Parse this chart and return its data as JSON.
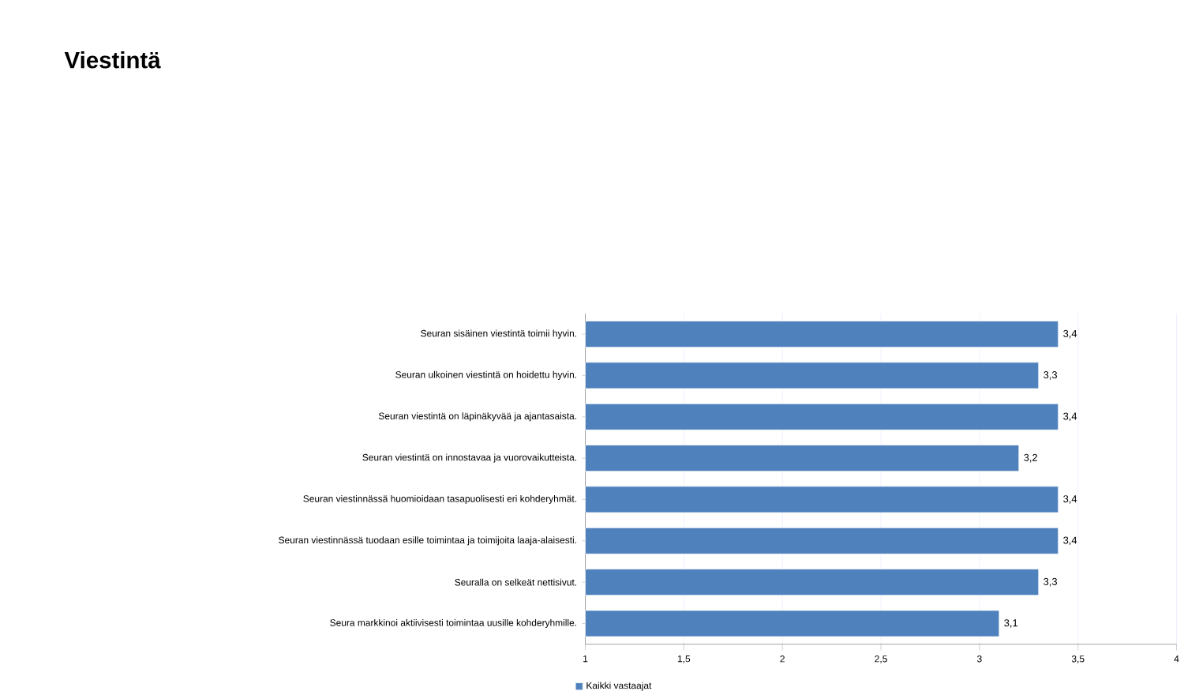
{
  "chart_data": {
    "type": "bar",
    "orientation": "horizontal",
    "title": "Viestintä",
    "categories": [
      "Seuran sisäinen viestintä toimii hyvin.",
      "Seuran ulkoinen viestintä on hoidettu hyvin.",
      "Seuran viestintä on läpinäkyvää ja ajantasaista.",
      "Seuran viestintä on innostavaa ja vuorovaikutteista.",
      "Seuran viestinnässä huomioidaan tasapuolisesti eri kohderyhmät.",
      "Seuran viestinnässä tuodaan esille toimintaa ja toimijoita laaja-alaisesti.",
      "Seuralla on selkeät nettisivut.",
      "Seura markkinoi aktiivisesti toimintaa uusille kohderyhmille."
    ],
    "series": [
      {
        "name": "Kaikki vastaajat",
        "color": "#4f81bd",
        "values": [
          3.4,
          3.3,
          3.4,
          3.2,
          3.4,
          3.4,
          3.3,
          3.1
        ],
        "value_labels": [
          "3,4",
          "3,3",
          "3,4",
          "3,2",
          "3,4",
          "3,4",
          "3,3",
          "3,1"
        ]
      }
    ],
    "xlim": [
      1,
      4
    ],
    "xticks": [
      1,
      {
        "value": 1.5,
        "label": "1,5"
      },
      2,
      {
        "value": 2.5,
        "label": "2,5"
      },
      3,
      {
        "value": 3.5,
        "label": "3,5"
      },
      4
    ],
    "grid": "x",
    "legend": "bottom left"
  }
}
